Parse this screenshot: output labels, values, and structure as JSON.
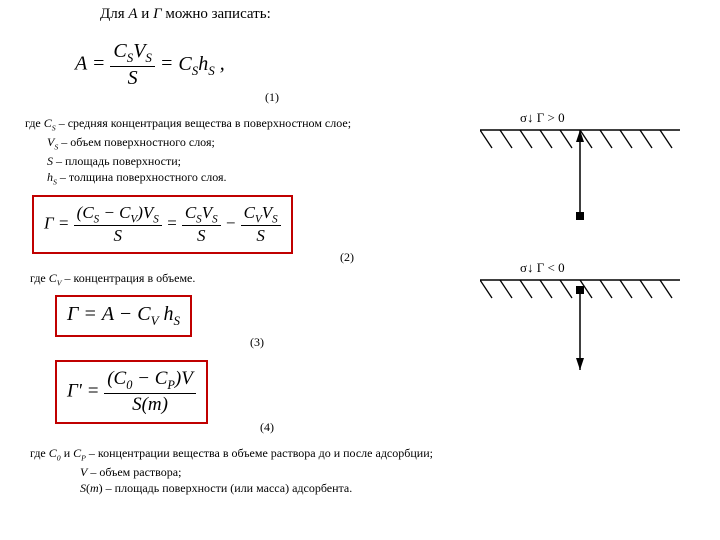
{
  "title_html": "Для <span class='it'>А</span> и <span class='it'>Г</span> можно записать:",
  "eq1_num": "C<span class='sub'>S</span>V<span class='sub'>S</span>",
  "eq1_den": "S",
  "eq1_rhs": "C<span class='sub'>S</span>h<span class='sub'>S</span>",
  "eq1_label": "(1)",
  "defs1_l1": "где <span class='it'>C<span class='sub'>S</span></span> – средняя концентрация вещества в поверхностном слое;",
  "defs1_l2": "<span class='it'>V<span class='sub'>S</span></span> – объем поверхностного слоя;",
  "defs1_l3": "<span class='it'>S</span> – площадь поверхности;",
  "defs1_l4": "<span class='it'>h<span class='sub'>S</span></span> – толщина поверхностного слоя.",
  "eq2_lhs_num": "(C<span class='sub'>S</span> − C<span class='sub'>V</span>)V<span class='sub'>S</span>",
  "eq2_lhs_den": "S",
  "eq2_mid_num": "C<span class='sub'>S</span>V<span class='sub'>S</span>",
  "eq2_mid_den": "S",
  "eq2_rhs_num": "C<span class='sub'>V</span>V<span class='sub'>S</span>",
  "eq2_rhs_den": "S",
  "eq2_label": "(2)",
  "eq2_box_color": "#c00000",
  "defs2": "где <span class='it'>C<span class='sub'>V</span></span> – концентрация в объеме.",
  "eq3_html": "Г = A − C<span class='sub'>V</span> h<span class='sub'>S</span>",
  "eq3_label": "(3)",
  "eq3_box_color": "#c00000",
  "eq4_num": "(C<span class='sub'>0</span> − C<span class='sub'>P</span>)V",
  "eq4_den": "S(m)",
  "eq4_label": "(4)",
  "eq4_box_color": "#c00000",
  "defs3_l1": "где <span class='it'>C<span class='sub'>0</span></span> и <span class='it'>C<span class='sub'>P</span></span> – концентрации вещества в объеме раствора до и после адсорбции;",
  "defs3_l2": "<span class='it'>V</span> – объем раствора;",
  "defs3_l3": "<span class='it'>S</span>(<span class='it'>m</span>) – площадь поверхности (или масса) адсорбента.",
  "diag1_label": "σ↓ Г > 0",
  "diag2_label": "σ↓ Г < 0",
  "diag_hatch_stroke": "#000000",
  "eq_fontsize_large": 20,
  "eq_fontsize_med": 18
}
